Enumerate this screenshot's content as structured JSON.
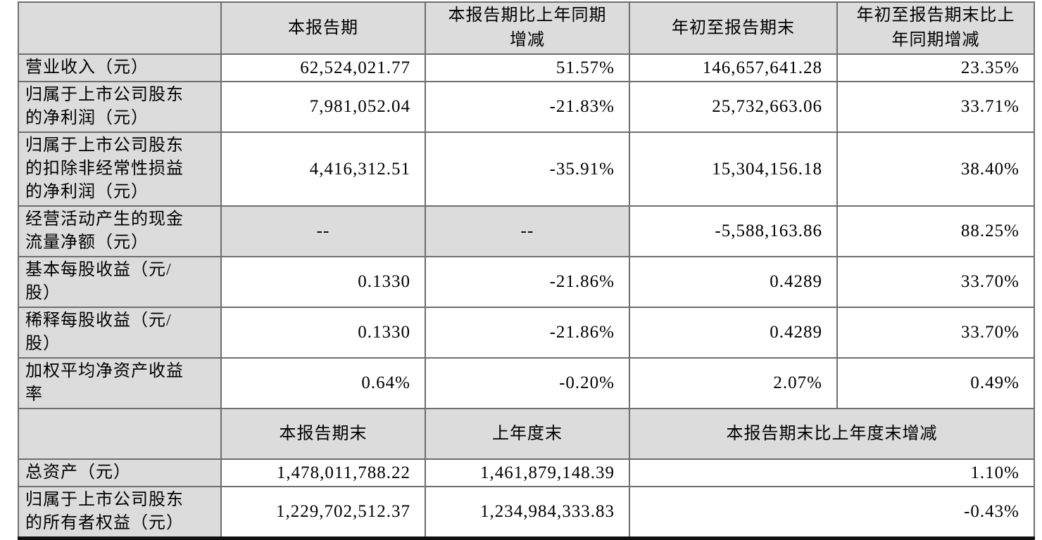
{
  "doc": {
    "kind": "quarterly-financial-summary-table",
    "colors": {
      "cell_fill_gray": "#dcdcdc",
      "cell_fill_white": "#ffffff",
      "inner_border": "#6e6e6e",
      "outer_border": "#4a4a4a",
      "bottom_border": "#101010",
      "text": "#000000"
    }
  },
  "s1": {
    "col_headers": [
      "本报告期",
      "本报告期比上年同期\n增减",
      "年初至报告期末",
      "年初至报告期末比上\n年同期增减"
    ],
    "rows": [
      {
        "label": "营业收入（元）",
        "values": [
          "62,524,021.77",
          "51.57%",
          "146,657,641.28",
          "23.35%"
        ]
      },
      {
        "label": "归属于上市公司股东\n的净利润（元）",
        "values": [
          "7,981,052.04",
          "-21.83%",
          "25,732,663.06",
          "33.71%"
        ]
      },
      {
        "label": "归属于上市公司股东\n的扣除非经常性损益\n的净利润（元）",
        "values": [
          "4,416,312.51",
          "-35.91%",
          "15,304,156.18",
          "38.40%"
        ]
      },
      {
        "label": "经营活动产生的现金\n流量净额（元）",
        "values": [
          "--",
          "--",
          "-5,588,163.86",
          "88.25%"
        ]
      },
      {
        "label": "基本每股收益（元/\n股）",
        "values": [
          "0.1330",
          "-21.86%",
          "0.4289",
          "33.70%"
        ]
      },
      {
        "label": "稀释每股收益（元/\n股）",
        "values": [
          "0.1330",
          "-21.86%",
          "0.4289",
          "33.70%"
        ]
      },
      {
        "label": "加权平均净资产收益\n率",
        "values": [
          "0.64%",
          "-0.20%",
          "2.07%",
          "0.49%"
        ]
      }
    ]
  },
  "s2": {
    "col_headers": [
      "本报告期末",
      "上年度末",
      "本报告期末比上年度末增减"
    ],
    "rows": [
      {
        "label": "总资产（元）",
        "values": [
          "1,478,011,788.22",
          "1,461,879,148.39",
          "1.10%"
        ]
      },
      {
        "label": "归属于上市公司股东\n的所有者权益（元）",
        "values": [
          "1,229,702,512.37",
          "1,234,984,333.83",
          "-0.43%"
        ]
      }
    ]
  }
}
